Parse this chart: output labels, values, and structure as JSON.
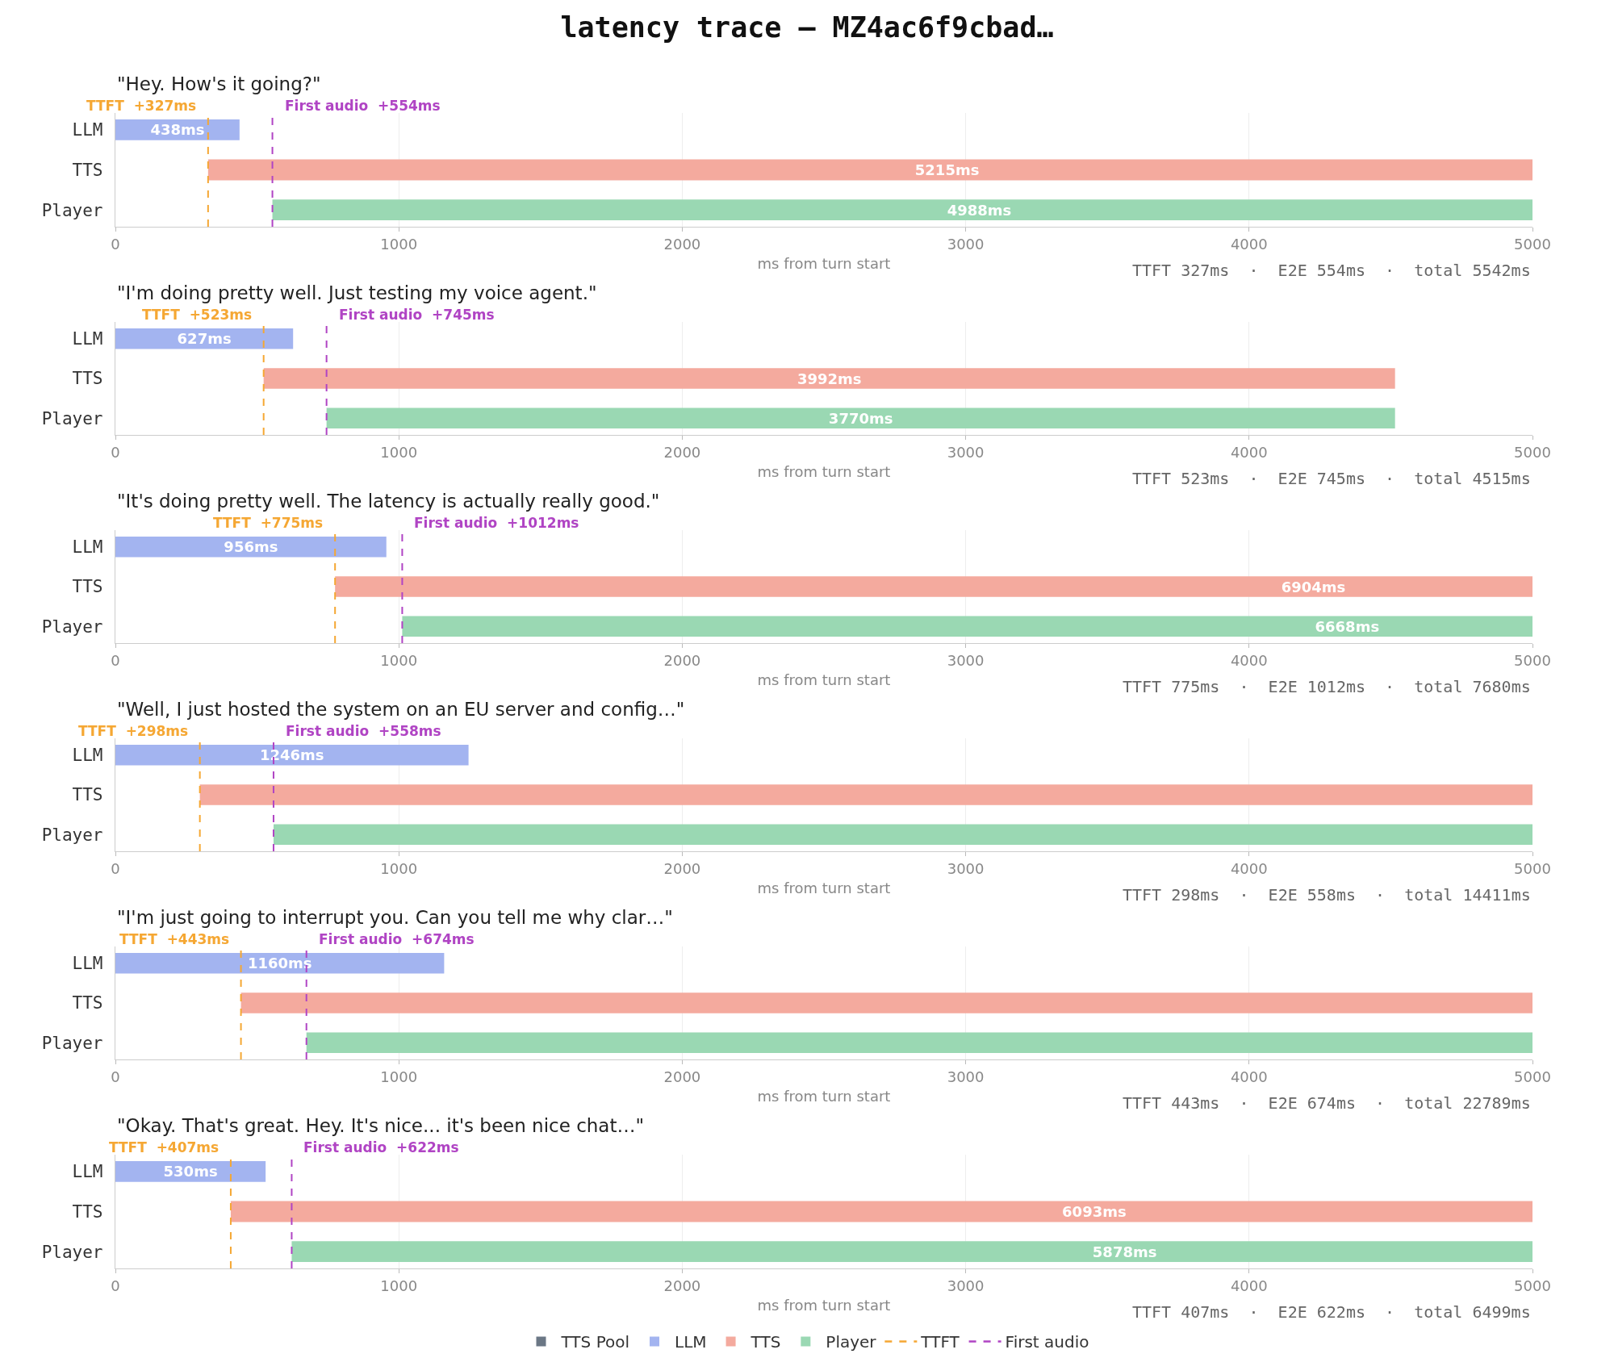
{
  "chart_data": [
    {
      "type": "bar",
      "orientation": "horizontal",
      "title": "latency trace — MZ4ac6f9cbad…",
      "subtitle": "\"Hey. How's it going?\"",
      "xlabel": "ms from turn start",
      "categories": [
        "LLM",
        "TTS",
        "Player"
      ],
      "series": [
        {
          "color": "#a3b4f0",
          "values": [
            438,
            null,
            null
          ],
          "base": [
            0,
            null,
            null
          ],
          "value_labels": [
            "438ms",
            null,
            null
          ]
        },
        {
          "color": "#f4aa9e",
          "values": [
            null,
            5215,
            null
          ],
          "base": [
            null,
            327,
            null
          ],
          "value_labels": [
            null,
            "5215ms",
            null
          ]
        },
        {
          "color": "#9ad8b3",
          "values": [
            null,
            null,
            4988
          ],
          "base": [
            null,
            null,
            554
          ],
          "value_labels": [
            null,
            null,
            "4988ms"
          ]
        }
      ],
      "xlim": [
        0,
        5000
      ],
      "xticks": [
        0,
        1000,
        2000,
        3000,
        4000,
        5000
      ],
      "grid": "x",
      "ref_lines": [
        {
          "axis": "x",
          "value": 327,
          "label": "TTFT  +327ms",
          "color": "#f5a733",
          "line_style": "dashed"
        },
        {
          "axis": "x",
          "value": 554,
          "label": "First audio  +554ms",
          "color": "#b044c4",
          "line_style": "dashed"
        }
      ],
      "annotations": [
        "TTFT 327ms  ·  E2E 554ms  ·  total 5542ms"
      ]
    },
    {
      "type": "bar",
      "orientation": "horizontal",
      "subtitle": "\"I'm doing pretty well. Just testing my voice agent.\"",
      "xlabel": "ms from turn start",
      "categories": [
        "LLM",
        "TTS",
        "Player"
      ],
      "series": [
        {
          "color": "#a3b4f0",
          "values": [
            627,
            null,
            null
          ],
          "base": [
            0,
            null,
            null
          ],
          "value_labels": [
            "627ms",
            null,
            null
          ]
        },
        {
          "color": "#f4aa9e",
          "values": [
            null,
            3992,
            null
          ],
          "base": [
            null,
            523,
            null
          ],
          "value_labels": [
            null,
            "3992ms",
            null
          ]
        },
        {
          "color": "#9ad8b3",
          "values": [
            null,
            null,
            3770
          ],
          "base": [
            null,
            null,
            745
          ],
          "value_labels": [
            null,
            null,
            "3770ms"
          ]
        }
      ],
      "xlim": [
        0,
        5000
      ],
      "xticks": [
        0,
        1000,
        2000,
        3000,
        4000,
        5000
      ],
      "grid": "x",
      "ref_lines": [
        {
          "axis": "x",
          "value": 523,
          "label": "TTFT  +523ms",
          "color": "#f5a733",
          "line_style": "dashed"
        },
        {
          "axis": "x",
          "value": 745,
          "label": "First audio  +745ms",
          "color": "#b044c4",
          "line_style": "dashed"
        }
      ],
      "annotations": [
        "TTFT 523ms  ·  E2E 745ms  ·  total 4515ms"
      ]
    },
    {
      "type": "bar",
      "orientation": "horizontal",
      "subtitle": "\"It's doing pretty well. The latency is actually really good.\"",
      "xlabel": "ms from turn start",
      "categories": [
        "LLM",
        "TTS",
        "Player"
      ],
      "series": [
        {
          "color": "#a3b4f0",
          "values": [
            956,
            null,
            null
          ],
          "base": [
            0,
            null,
            null
          ],
          "value_labels": [
            "956ms",
            null,
            null
          ]
        },
        {
          "color": "#f4aa9e",
          "values": [
            null,
            6904,
            null
          ],
          "base": [
            null,
            775,
            null
          ],
          "value_labels": [
            null,
            "6904ms",
            null
          ]
        },
        {
          "color": "#9ad8b3",
          "values": [
            null,
            null,
            6668
          ],
          "base": [
            null,
            null,
            1012
          ],
          "value_labels": [
            null,
            null,
            "6668ms"
          ]
        }
      ],
      "xlim": [
        0,
        5000
      ],
      "xticks": [
        0,
        1000,
        2000,
        3000,
        4000,
        5000
      ],
      "grid": "x",
      "ref_lines": [
        {
          "axis": "x",
          "value": 775,
          "label": "TTFT  +775ms",
          "color": "#f5a733",
          "line_style": "dashed"
        },
        {
          "axis": "x",
          "value": 1012,
          "label": "First audio  +1012ms",
          "color": "#b044c4",
          "line_style": "dashed"
        }
      ],
      "annotations": [
        "TTFT 775ms  ·  E2E 1012ms  ·  total 7680ms"
      ]
    },
    {
      "type": "bar",
      "orientation": "horizontal",
      "subtitle": "\"Well, I just hosted the system on an EU server and config…\"",
      "xlabel": "ms from turn start",
      "categories": [
        "LLM",
        "TTS",
        "Player"
      ],
      "series": [
        {
          "color": "#a3b4f0",
          "values": [
            1246,
            null,
            null
          ],
          "base": [
            0,
            null,
            null
          ],
          "value_labels": [
            "1246ms",
            null,
            null
          ]
        },
        {
          "color": "#f4aa9e",
          "values": [
            null,
            4702,
            null
          ],
          "base": [
            null,
            298,
            null
          ]
        },
        {
          "color": "#9ad8b3",
          "values": [
            null,
            null,
            4442
          ],
          "base": [
            null,
            null,
            558
          ]
        }
      ],
      "xlim": [
        0,
        5000
      ],
      "xticks": [
        0,
        1000,
        2000,
        3000,
        4000,
        5000
      ],
      "grid": "x",
      "ref_lines": [
        {
          "axis": "x",
          "value": 298,
          "label": "TTFT  +298ms",
          "color": "#f5a733",
          "line_style": "dashed"
        },
        {
          "axis": "x",
          "value": 558,
          "label": "First audio  +558ms",
          "color": "#b044c4",
          "line_style": "dashed"
        }
      ],
      "annotations": [
        "TTFT 298ms  ·  E2E 558ms  ·  total 14411ms"
      ]
    },
    {
      "type": "bar",
      "orientation": "horizontal",
      "subtitle": "\"I'm just going to interrupt you. Can you tell me why clar…\"",
      "xlabel": "ms from turn start",
      "categories": [
        "LLM",
        "TTS",
        "Player"
      ],
      "series": [
        {
          "color": "#a3b4f0",
          "values": [
            1160,
            null,
            null
          ],
          "base": [
            0,
            null,
            null
          ],
          "value_labels": [
            "1160ms",
            null,
            null
          ]
        },
        {
          "color": "#f4aa9e",
          "values": [
            null,
            4557,
            null
          ],
          "base": [
            null,
            443,
            null
          ]
        },
        {
          "color": "#9ad8b3",
          "values": [
            null,
            null,
            4326
          ],
          "base": [
            null,
            null,
            674
          ]
        }
      ],
      "xlim": [
        0,
        5000
      ],
      "xticks": [
        0,
        1000,
        2000,
        3000,
        4000,
        5000
      ],
      "grid": "x",
      "ref_lines": [
        {
          "axis": "x",
          "value": 443,
          "label": "TTFT  +443ms",
          "color": "#f5a733",
          "line_style": "dashed"
        },
        {
          "axis": "x",
          "value": 674,
          "label": "First audio  +674ms",
          "color": "#b044c4",
          "line_style": "dashed"
        }
      ],
      "annotations": [
        "TTFT 443ms  ·  E2E 674ms  ·  total 22789ms"
      ]
    },
    {
      "type": "bar",
      "orientation": "horizontal",
      "subtitle": "\"Okay. That's great. Hey. It's nice... it's been nice chat…\"",
      "xlabel": "ms from turn start",
      "categories": [
        "LLM",
        "TTS",
        "Player"
      ],
      "series": [
        {
          "name": "TTS Pool",
          "color": "#6b7785",
          "values": [
            null,
            null,
            null
          ]
        },
        {
          "name": "LLM",
          "color": "#a3b4f0",
          "values": [
            530,
            null,
            null
          ],
          "base": [
            0,
            null,
            null
          ],
          "value_labels": [
            "530ms",
            null,
            null
          ]
        },
        {
          "name": "TTS",
          "color": "#f4aa9e",
          "values": [
            null,
            6093,
            null
          ],
          "base": [
            null,
            407,
            null
          ],
          "value_labels": [
            null,
            "6093ms",
            null
          ]
        },
        {
          "name": "Player",
          "color": "#9ad8b3",
          "values": [
            null,
            null,
            5878
          ],
          "base": [
            null,
            null,
            622
          ],
          "value_labels": [
            null,
            null,
            "5878ms"
          ]
        },
        {
          "name": "TTFT",
          "type": "line",
          "color": "#f5a733",
          "line_style": "dashed",
          "values": [
            null,
            null,
            null
          ]
        },
        {
          "name": "First audio",
          "type": "line",
          "color": "#b044c4",
          "line_style": "dashed",
          "values": [
            null,
            null,
            null
          ]
        }
      ],
      "xlim": [
        0,
        5000
      ],
      "xticks": [
        0,
        1000,
        2000,
        3000,
        4000,
        5000
      ],
      "grid": "x",
      "legend": "bottom",
      "ref_lines": [
        {
          "axis": "x",
          "value": 407,
          "label": "TTFT  +407ms",
          "color": "#f5a733",
          "line_style": "dashed"
        },
        {
          "axis": "x",
          "value": 622,
          "label": "First audio  +622ms",
          "color": "#b044c4",
          "line_style": "dashed"
        }
      ],
      "annotations": [
        "TTFT 407ms  ·  E2E 622ms  ·  total 6499ms"
      ]
    }
  ]
}
